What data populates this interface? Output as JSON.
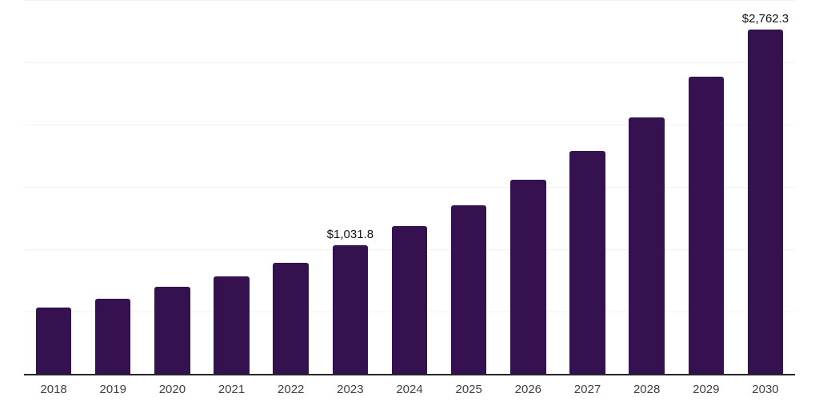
{
  "chart_data": {
    "type": "bar",
    "title": "",
    "xlabel": "",
    "ylabel": "",
    "categories": [
      "2018",
      "2019",
      "2020",
      "2021",
      "2022",
      "2023",
      "2024",
      "2025",
      "2026",
      "2027",
      "2028",
      "2029",
      "2030"
    ],
    "values": [
      534.2,
      602.1,
      695.7,
      780.6,
      893.6,
      1031.8,
      1182.8,
      1355.1,
      1557.4,
      1787.2,
      2057.4,
      2387.2,
      2762.3
    ],
    "data_labels": [
      "",
      "",
      "",
      "",
      "",
      "$1,031.8",
      "",
      "",
      "",
      "",
      "",
      "",
      "$2,762.3"
    ],
    "ylim": [
      0,
      3000
    ],
    "grid_step": 500,
    "grid": "horizontal",
    "legend": "none",
    "axis_tick_labels_visible": "x-only"
  },
  "colors": {
    "bar": "#36114F",
    "gridline": "#f2f2f2",
    "axis_line": "#262626",
    "x_tick_label": "#404040",
    "data_label": "#111111",
    "background": "#ffffff"
  }
}
